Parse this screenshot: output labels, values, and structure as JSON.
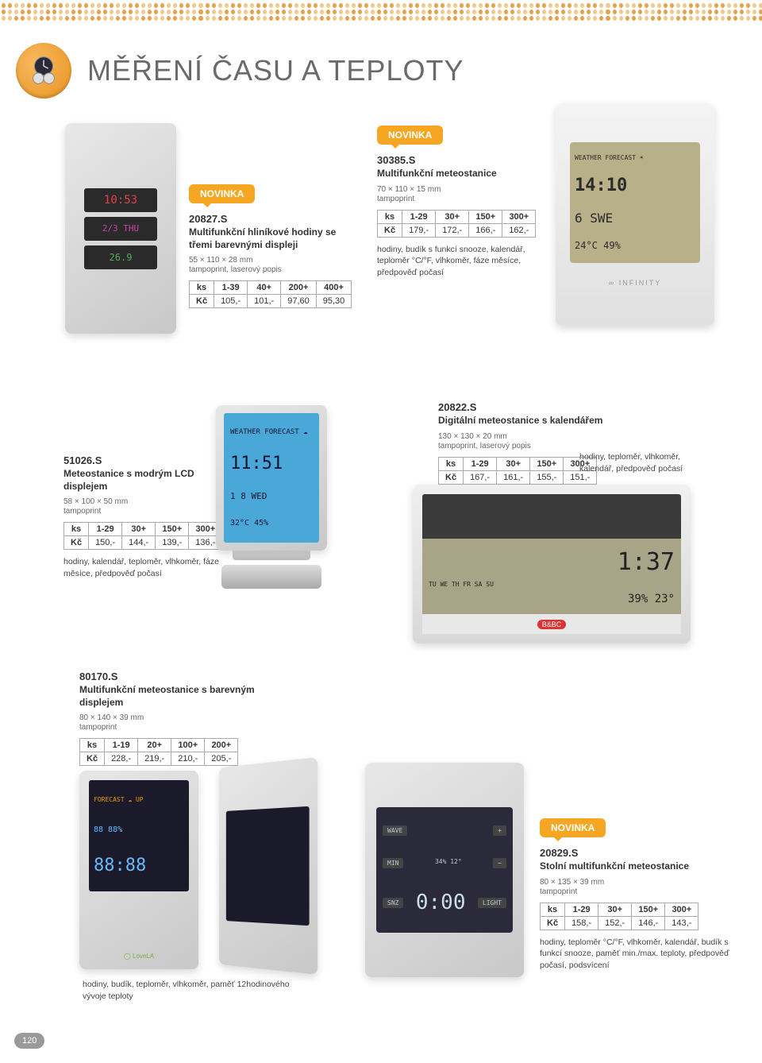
{
  "page": {
    "title": "MĚŘENÍ ČASU A TEPLOTY",
    "number": "120",
    "novinka_label": "NOVINKA",
    "accent_color": "#f5a623",
    "dot_color": "#e8a04a"
  },
  "p20827": {
    "code": "20827.S",
    "name": "Multifunkční hliníkové hodiny se třemi barevnými displeji",
    "dims": "55 × 110 × 28 mm",
    "print": "tampoprint, laserový popis",
    "col0": "ks",
    "col1": "1-39",
    "col2": "40+",
    "col3": "200+",
    "col4": "400+",
    "row0": "Kč",
    "v1": "105,-",
    "v2": "101,-",
    "v3": "97,60",
    "v4": "95,30"
  },
  "p30385": {
    "code": "30385.S",
    "name": "Multifunkční meteostanice",
    "dims": "70 × 110 × 15 mm",
    "print": "tampoprint",
    "col0": "ks",
    "col1": "1-29",
    "col2": "30+",
    "col3": "150+",
    "col4": "300+",
    "row0": "Kč",
    "v1": "179,-",
    "v2": "172,-",
    "v3": "166,-",
    "v4": "162,-",
    "desc": "hodiny, budík s funkcí snooze, kalendář, teploměr °C/°F, vlhkoměr, fáze měsíce, předpověď počasí"
  },
  "p51026": {
    "code": "51026.S",
    "name": "Meteostanice s modrým LCD displejem",
    "dims": "58 × 100 × 50 mm",
    "print": "tampoprint",
    "col0": "ks",
    "col1": "1-29",
    "col2": "30+",
    "col3": "150+",
    "col4": "300+",
    "row0": "Kč",
    "v1": "150,-",
    "v2": "144,-",
    "v3": "139,-",
    "v4": "136,-",
    "desc": "hodiny, kalendář, teploměr, vlhkoměr, fáze měsíce, předpověď počasí"
  },
  "p20822": {
    "code": "20822.S",
    "name": "Digitální meteostanice s kalendářem",
    "dims": "130 × 130 × 20 mm",
    "print": "tampoprint, laserový popis",
    "col0": "ks",
    "col1": "1-29",
    "col2": "30+",
    "col3": "150+",
    "col4": "300+",
    "row0": "Kč",
    "v1": "167,-",
    "v2": "161,-",
    "v3": "155,-",
    "v4": "151,-",
    "side_desc": "hodiny, teploměr, vlhkoměr, kalendář, předpověď počasí"
  },
  "p80170": {
    "code": "80170.S",
    "name": "Multifunkční meteostanice s barevným displejem",
    "dims": "80 × 140 × 39 mm",
    "print": "tampoprint",
    "col0": "ks",
    "col1": "1-19",
    "col2": "20+",
    "col3": "100+",
    "col4": "200+",
    "row0": "Kč",
    "v1": "228,-",
    "v2": "219,-",
    "v3": "210,-",
    "v4": "205,-",
    "desc": "hodiny, budík, teploměr, vlhkoměr, paměť 12hodinového vývoje teploty"
  },
  "p20829": {
    "code": "20829.S",
    "name": "Stolní multifunkční meteostanice",
    "dims": "80 × 135 × 39 mm",
    "print": "tampoprint",
    "col0": "ks",
    "col1": "1-29",
    "col2": "30+",
    "col3": "150+",
    "col4": "300+",
    "row0": "Kč",
    "v1": "158,-",
    "v2": "152,-",
    "v3": "146,-",
    "v4": "143,-",
    "desc": "hodiny, teploměr °C/°F, vlhkoměr, kalendář, budík s funkcí snooze, paměť min./max. teploty, předpověď počasí, podsvícení"
  }
}
